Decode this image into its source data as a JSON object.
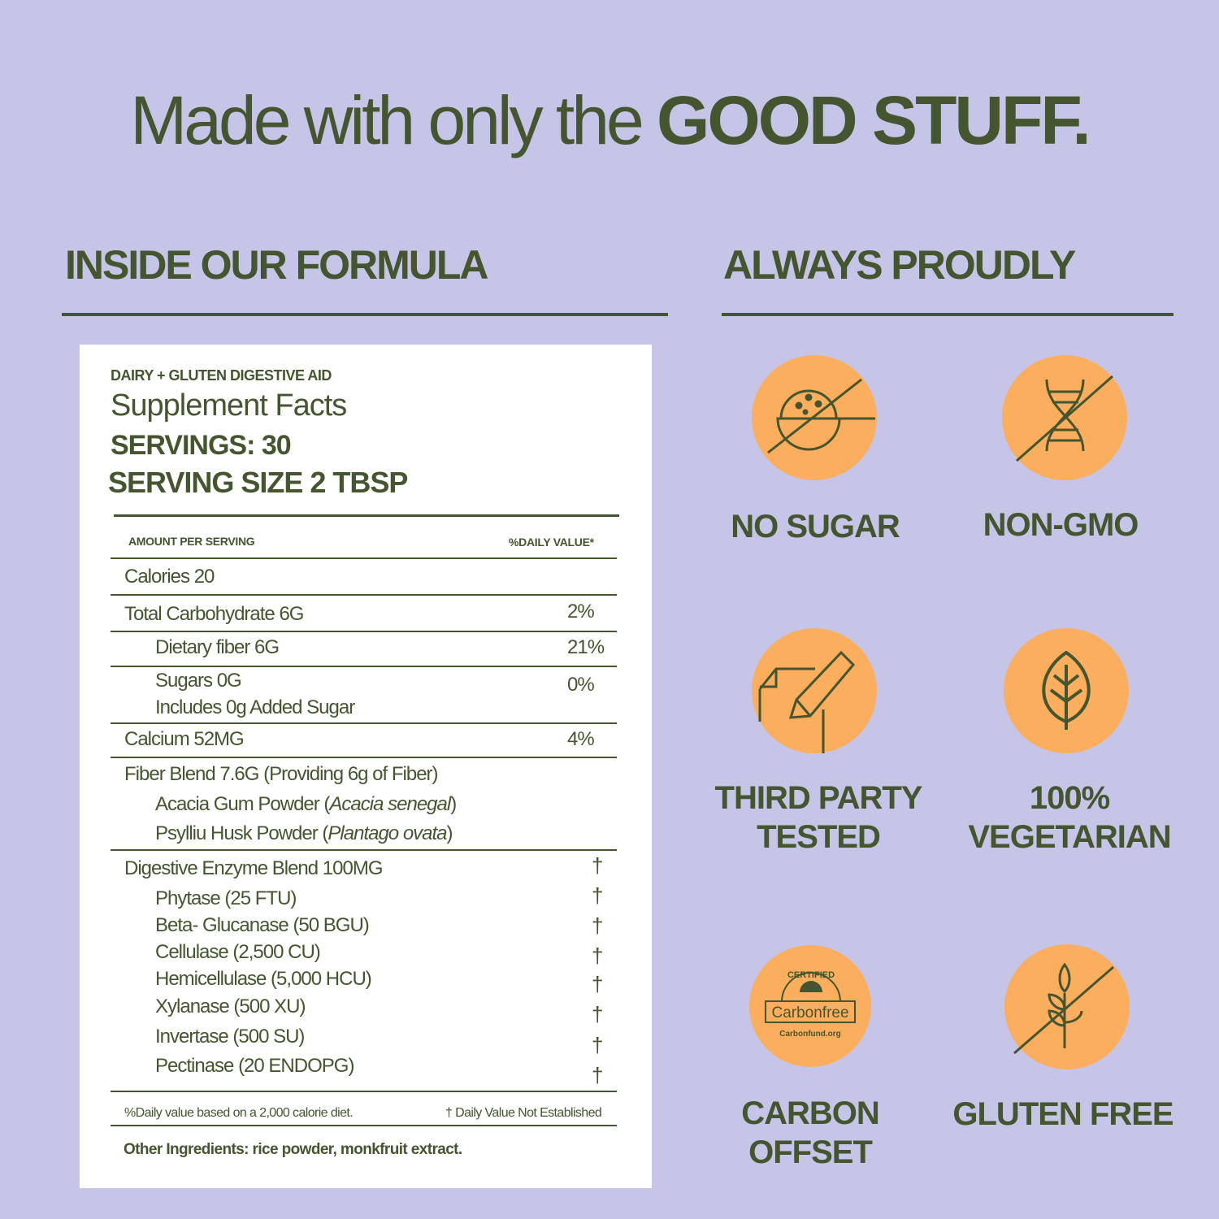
{
  "headline": {
    "light": "Made with only the ",
    "bold": "GOOD STUFF."
  },
  "sections": {
    "left": "INSIDE OUR FORMULA",
    "right": "ALWAYS PROUDLY"
  },
  "label": {
    "category": "DAIRY + GLUTEN DIGESTIVE AID",
    "title": "Supplement Facts",
    "servings": "SERVINGS: 30",
    "serving_size": "SERVING SIZE 2 TBSP",
    "col_amount": "AMOUNT PER SERVING",
    "col_dv": "%DAILY VALUE*",
    "rows": [
      {
        "name": "Calories 20",
        "dv": ""
      },
      {
        "name": "Total Carbohydrate 6G",
        "dv": "2%"
      },
      {
        "name": "Dietary fiber 6G",
        "dv": "21%"
      },
      {
        "name": "Sugars 0G",
        "dv": "0%",
        "sub": "Includes 0g Added Sugar"
      },
      {
        "name": "Calcium 52MG",
        "dv": "4%"
      }
    ],
    "fiber_blend": {
      "name": "Fiber Blend 7.6G (Providing 6g of Fiber)",
      "items": [
        {
          "name": "Acacia Gum Powder (",
          "latin": "Acacia senegal",
          "close": ")"
        },
        {
          "name": "Psylliu Husk Powder (",
          "latin": "Plantago ovata",
          "close": ")"
        }
      ]
    },
    "enzyme_blend": {
      "name": "Digestive Enzyme Blend 100MG",
      "dv": "†",
      "items": [
        {
          "name": "Phytase (25 FTU)",
          "dv": "†"
        },
        {
          "name": "Beta- Glucanase (50 BGU)",
          "dv": "†"
        },
        {
          "name": "Cellulase (2,500 CU)",
          "dv": "†"
        },
        {
          "name": "Hemicellulase (5,000 HCU)",
          "dv": "†"
        },
        {
          "name": "Xylanase (500 XU)",
          "dv": "†"
        },
        {
          "name": "Invertase (500 SU)",
          "dv": "†"
        },
        {
          "name": "Pectinase (20 ENDOPG)",
          "dv": "†"
        }
      ]
    },
    "footnote_left": "%Daily value based on a 2,000 calorie diet.",
    "footnote_right": "† Daily Value Not Established",
    "other": "Other Ingredients: rice powder, monkfruit extract."
  },
  "badges": [
    {
      "icon": "no-sugar-icon",
      "lines": [
        "NO SUGAR"
      ]
    },
    {
      "icon": "non-gmo-dna-icon",
      "lines": [
        "NON-GMO"
      ]
    },
    {
      "icon": "pencil-paper-icon",
      "lines": [
        "THIRD PARTY",
        "TESTED"
      ]
    },
    {
      "icon": "leaf-icon",
      "lines": [
        "100%",
        "VEGETARIAN"
      ]
    },
    {
      "icon": "carbonfree-logo",
      "lines": [
        "CARBON",
        "OFFSET"
      ],
      "logo_text": {
        "top": "CERTIFIED",
        "mid": "Carbonfree",
        "bottom": "Carbonfund.org"
      }
    },
    {
      "icon": "no-wheat-icon",
      "lines": [
        "GLUTEN FREE"
      ]
    }
  ],
  "colors": {
    "background": "#c6c5e7",
    "text": "#45552f",
    "badge": "#fbae5d",
    "label": "#ffffff"
  }
}
